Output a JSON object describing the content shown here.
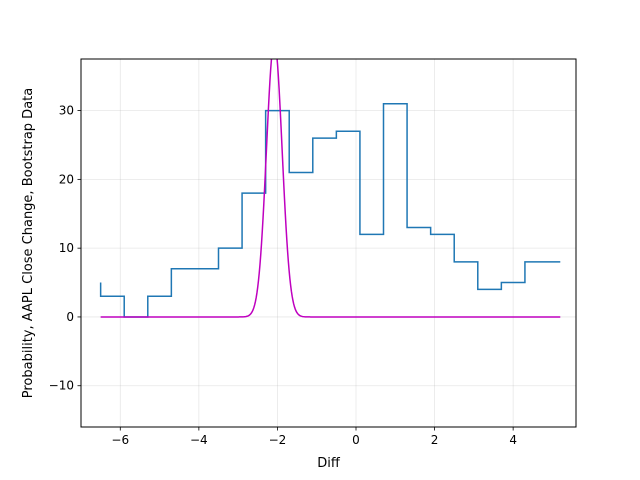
{
  "chart_data": {
    "type": "line",
    "title": "",
    "xlabel": "Diff",
    "ylabel": "Probability, AAPL Close Change, Bootstrap Data",
    "xlim": [
      -7.0,
      5.6
    ],
    "ylim": [
      -16,
      37.5
    ],
    "xticks": [
      -6,
      -4,
      -2,
      0,
      2,
      4
    ],
    "xtick_labels": [
      "−6",
      "−4",
      "−2",
      "0",
      "2",
      "4"
    ],
    "yticks": [
      -10,
      0,
      10,
      20,
      30
    ],
    "ytick_labels": [
      "−10",
      "0",
      "10",
      "20",
      "30"
    ],
    "grid": true,
    "series": [
      {
        "kind": "step",
        "color": "#1f77b4",
        "x_edges": [
          -6.5,
          -5.9,
          -5.3,
          -4.7,
          -4.1,
          -3.5,
          -2.9,
          -2.3,
          -1.7,
          -1.1,
          -0.5,
          0.1,
          0.7,
          1.3,
          1.9,
          2.5,
          3.1,
          3.7,
          4.3,
          4.9,
          5.2
        ],
        "values": [
          3,
          0,
          3,
          7,
          7,
          10,
          18,
          30,
          21,
          26,
          27,
          12,
          31,
          13,
          12,
          8,
          4,
          5,
          8,
          8
        ],
        "start_value": 5
      },
      {
        "kind": "normal-pdf",
        "color": "#bf00bf",
        "mean": -2.08,
        "std": 0.2,
        "scale": 40,
        "x_range": [
          -6.5,
          5.2
        ]
      }
    ]
  }
}
